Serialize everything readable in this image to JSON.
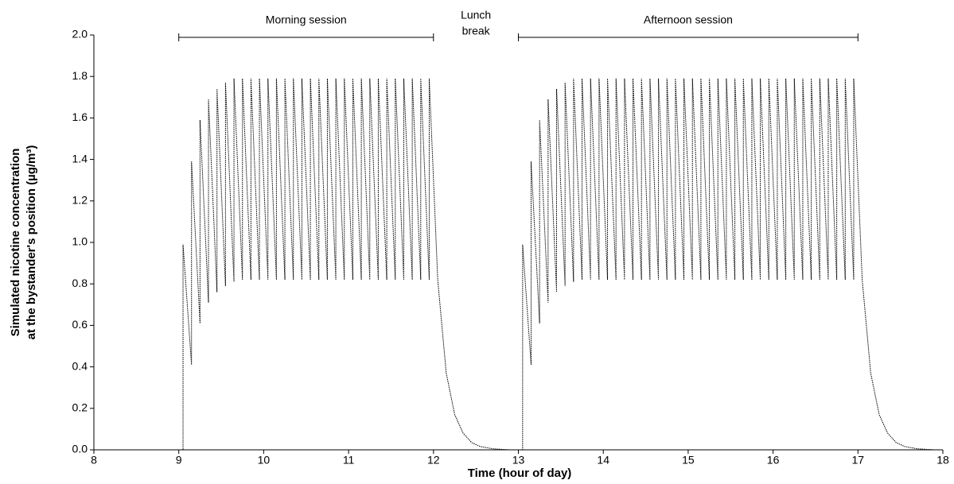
{
  "chart_data": {
    "type": "line",
    "xlabel": "Time (hour of day)",
    "ylabel": [
      "Simulated nicotine concentration",
      "at the bystander's position (µg/m³)"
    ],
    "xlim": [
      8,
      18
    ],
    "xticks": [
      8,
      9,
      10,
      11,
      12,
      13,
      14,
      15,
      16,
      17,
      18
    ],
    "ylim": [
      0,
      2
    ],
    "yticks": [
      {
        "value": 0,
        "label": "0.0"
      },
      0.2,
      0.4,
      0.6,
      0.8,
      {
        "value": 1,
        "label": "1.0"
      },
      1.2,
      1.4,
      1.6,
      1.8,
      {
        "value": 2,
        "label": "2.0"
      }
    ],
    "color": "#000000",
    "annotations": [
      {
        "text": "Morning session",
        "x": [
          9,
          12
        ]
      },
      {
        "text": "Afternoon session",
        "x": [
          13,
          17
        ]
      },
      {
        "text": [
          "Lunch",
          "break"
        ],
        "x": [
          12.5
        ]
      }
    ],
    "x": [
      8,
      9.05,
      9.05,
      9.15,
      9.15,
      9.25,
      9.25,
      9.35,
      9.35,
      9.45,
      9.45,
      9.55,
      9.55,
      9.65,
      9.65,
      9.75,
      9.75,
      9.85,
      9.85,
      9.95,
      9.95,
      10.05,
      10.05,
      10.15,
      10.15,
      10.25,
      10.25,
      10.35,
      10.35,
      10.45,
      10.45,
      10.55,
      10.55,
      10.65,
      10.65,
      10.75,
      10.75,
      10.85,
      10.85,
      10.95,
      10.95,
      11.05,
      11.05,
      11.15,
      11.15,
      11.25,
      11.25,
      11.35,
      11.35,
      11.45,
      11.45,
      11.55,
      11.55,
      11.65,
      11.65,
      11.75,
      11.75,
      11.85,
      11.85,
      11.95,
      11.95,
      12.05,
      12.15,
      12.25,
      12.35,
      12.45,
      12.55,
      12.7,
      12.9,
      13.05,
      13.05,
      13.15,
      13.15,
      13.25,
      13.25,
      13.35,
      13.35,
      13.45,
      13.45,
      13.55,
      13.55,
      13.65,
      13.65,
      13.75,
      13.75,
      13.85,
      13.85,
      13.95,
      13.95,
      14.05,
      14.05,
      14.15,
      14.15,
      14.25,
      14.25,
      14.35,
      14.35,
      14.45,
      14.45,
      14.55,
      14.55,
      14.65,
      14.65,
      14.75,
      14.75,
      14.85,
      14.85,
      14.95,
      14.95,
      15.05,
      15.05,
      15.15,
      15.15,
      15.25,
      15.25,
      15.35,
      15.35,
      15.45,
      15.45,
      15.55,
      15.55,
      15.65,
      15.65,
      15.75,
      15.75,
      15.85,
      15.85,
      15.95,
      15.95,
      16.05,
      16.05,
      16.15,
      16.15,
      16.25,
      16.25,
      16.35,
      16.35,
      16.45,
      16.45,
      16.55,
      16.55,
      16.65,
      16.65,
      16.75,
      16.75,
      16.85,
      16.85,
      16.95,
      16.95,
      17.05,
      17.15,
      17.25,
      17.35,
      17.45,
      17.55,
      17.7,
      17.9,
      18
    ],
    "values": [
      0,
      0,
      0.99,
      0.41,
      1.39,
      0.61,
      1.59,
      0.71,
      1.69,
      0.76,
      1.74,
      0.79,
      1.77,
      0.81,
      1.79,
      0.82,
      1.79,
      0.82,
      1.79,
      0.82,
      1.79,
      0.82,
      1.79,
      0.82,
      1.79,
      0.82,
      1.79,
      0.82,
      1.79,
      0.82,
      1.79,
      0.82,
      1.79,
      0.82,
      1.79,
      0.82,
      1.79,
      0.82,
      1.79,
      0.82,
      1.79,
      0.82,
      1.79,
      0.82,
      1.79,
      0.82,
      1.79,
      0.82,
      1.79,
      0.82,
      1.79,
      0.82,
      1.79,
      0.82,
      1.79,
      0.82,
      1.79,
      0.82,
      1.79,
      0.82,
      1.79,
      0.82,
      0.37,
      0.17,
      0.08,
      0.035,
      0.016,
      0.005,
      0,
      0,
      0.99,
      0.41,
      1.39,
      0.61,
      1.59,
      0.71,
      1.69,
      0.76,
      1.74,
      0.79,
      1.77,
      0.81,
      1.79,
      0.82,
      1.79,
      0.82,
      1.79,
      0.82,
      1.79,
      0.82,
      1.79,
      0.82,
      1.79,
      0.82,
      1.79,
      0.82,
      1.79,
      0.82,
      1.79,
      0.82,
      1.79,
      0.82,
      1.79,
      0.82,
      1.79,
      0.82,
      1.79,
      0.82,
      1.79,
      0.82,
      1.79,
      0.82,
      1.79,
      0.82,
      1.79,
      0.82,
      1.79,
      0.82,
      1.79,
      0.82,
      1.79,
      0.82,
      1.79,
      0.82,
      1.79,
      0.82,
      1.79,
      0.82,
      1.79,
      0.82,
      1.79,
      0.82,
      1.79,
      0.82,
      1.79,
      0.82,
      1.79,
      0.82,
      1.79,
      0.82,
      1.79,
      0.82,
      1.79,
      0.82,
      1.79,
      0.82,
      1.79,
      0.82,
      1.79,
      0.82,
      0.37,
      0.17,
      0.08,
      0.035,
      0.016,
      0.005,
      0,
      0
    ]
  }
}
